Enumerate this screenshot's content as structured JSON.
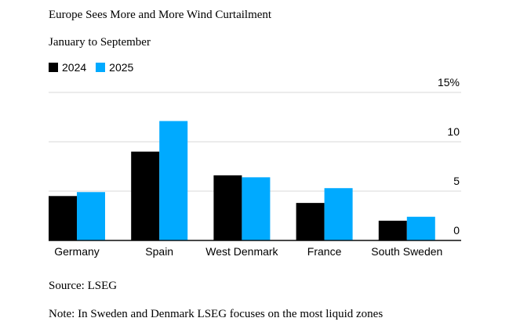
{
  "chart_data": {
    "type": "bar",
    "title": "Europe Sees More and More Wind Curtailment",
    "subtitle": "January to September",
    "categories": [
      "Germany",
      "Spain",
      "West Denmark",
      "France",
      "South Sweden"
    ],
    "series": [
      {
        "name": "2024",
        "color": "#000000",
        "values": [
          4.5,
          9.0,
          6.6,
          3.8,
          2.0
        ]
      },
      {
        "name": "2025",
        "color": "#00aaff",
        "values": [
          4.9,
          12.1,
          6.4,
          5.3,
          2.4
        ]
      }
    ],
    "ylim": [
      0,
      15
    ],
    "yticks": [
      {
        "value": 0,
        "label": "0"
      },
      {
        "value": 5,
        "label": "5"
      },
      {
        "value": 10,
        "label": "10"
      },
      {
        "value": 15,
        "label": "15%"
      }
    ],
    "grid": true,
    "legend_position": "top-left",
    "source": "Source: LSEG",
    "note": "Note: In Sweden and Denmark LSEG focuses on the most liquid zones"
  }
}
